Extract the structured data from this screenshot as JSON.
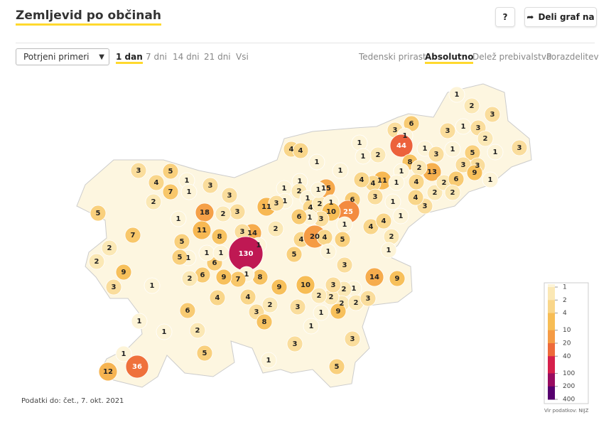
{
  "header": {
    "title": "Zemljevid po občinah",
    "help": "?",
    "share": "Deli graf na"
  },
  "controls": {
    "measure": "Potrjeni primeri",
    "periods": [
      "1 dan",
      "7 dni",
      "14 dni",
      "21 dni",
      "Vsi"
    ],
    "active_period": 0,
    "views": [
      "Tedenski prirast",
      "Absolutno",
      "Delež prebivalstva",
      "Porazdelitev"
    ],
    "active_view": 1
  },
  "map": {
    "values": [
      1,
      2,
      3,
      6,
      3,
      1,
      3,
      1,
      3,
      1,
      2,
      44,
      1,
      3,
      1,
      5,
      2,
      1,
      3,
      3,
      3,
      9,
      1,
      8,
      13,
      2,
      1,
      1,
      1,
      11,
      4,
      4,
      4,
      2,
      2,
      6,
      2,
      3,
      4,
      1,
      1,
      3,
      1,
      4,
      4,
      2,
      1,
      4,
      4,
      1,
      1,
      1,
      2,
      1,
      1,
      4,
      2,
      15,
      1,
      1,
      6,
      25,
      1,
      10,
      3,
      1,
      6,
      11,
      3,
      2,
      4,
      20,
      4,
      5,
      1,
      14,
      3,
      3,
      3,
      2,
      18,
      11,
      8,
      1,
      130,
      5,
      3,
      14,
      9,
      1,
      2,
      2,
      2,
      3,
      2,
      10,
      9,
      8,
      1,
      7,
      9,
      6,
      1,
      1,
      6,
      2,
      1,
      5,
      5,
      1,
      4,
      6,
      4,
      3,
      2,
      8,
      3,
      1,
      9,
      2,
      3,
      1,
      3,
      3,
      1,
      5,
      3,
      5,
      4,
      7,
      1,
      1,
      3,
      2,
      5,
      7,
      2,
      2,
      9,
      3,
      1,
      1,
      1,
      2,
      5,
      1,
      12,
      36
    ],
    "legend": {
      "ticks": [
        1,
        2,
        4,
        10,
        20,
        40,
        100,
        200,
        400
      ],
      "colors": [
        "#fdf4d8",
        "#fbe8b5",
        "#f9d68a",
        "#f7bd55",
        "#f59b45",
        "#ee6a3a",
        "#d6204b",
        "#980c60",
        "#56006e"
      ]
    }
  },
  "footer": {
    "date": "Podatki do: čet., 7. okt. 2021",
    "source": "Vir podatkov: NIJZ"
  }
}
